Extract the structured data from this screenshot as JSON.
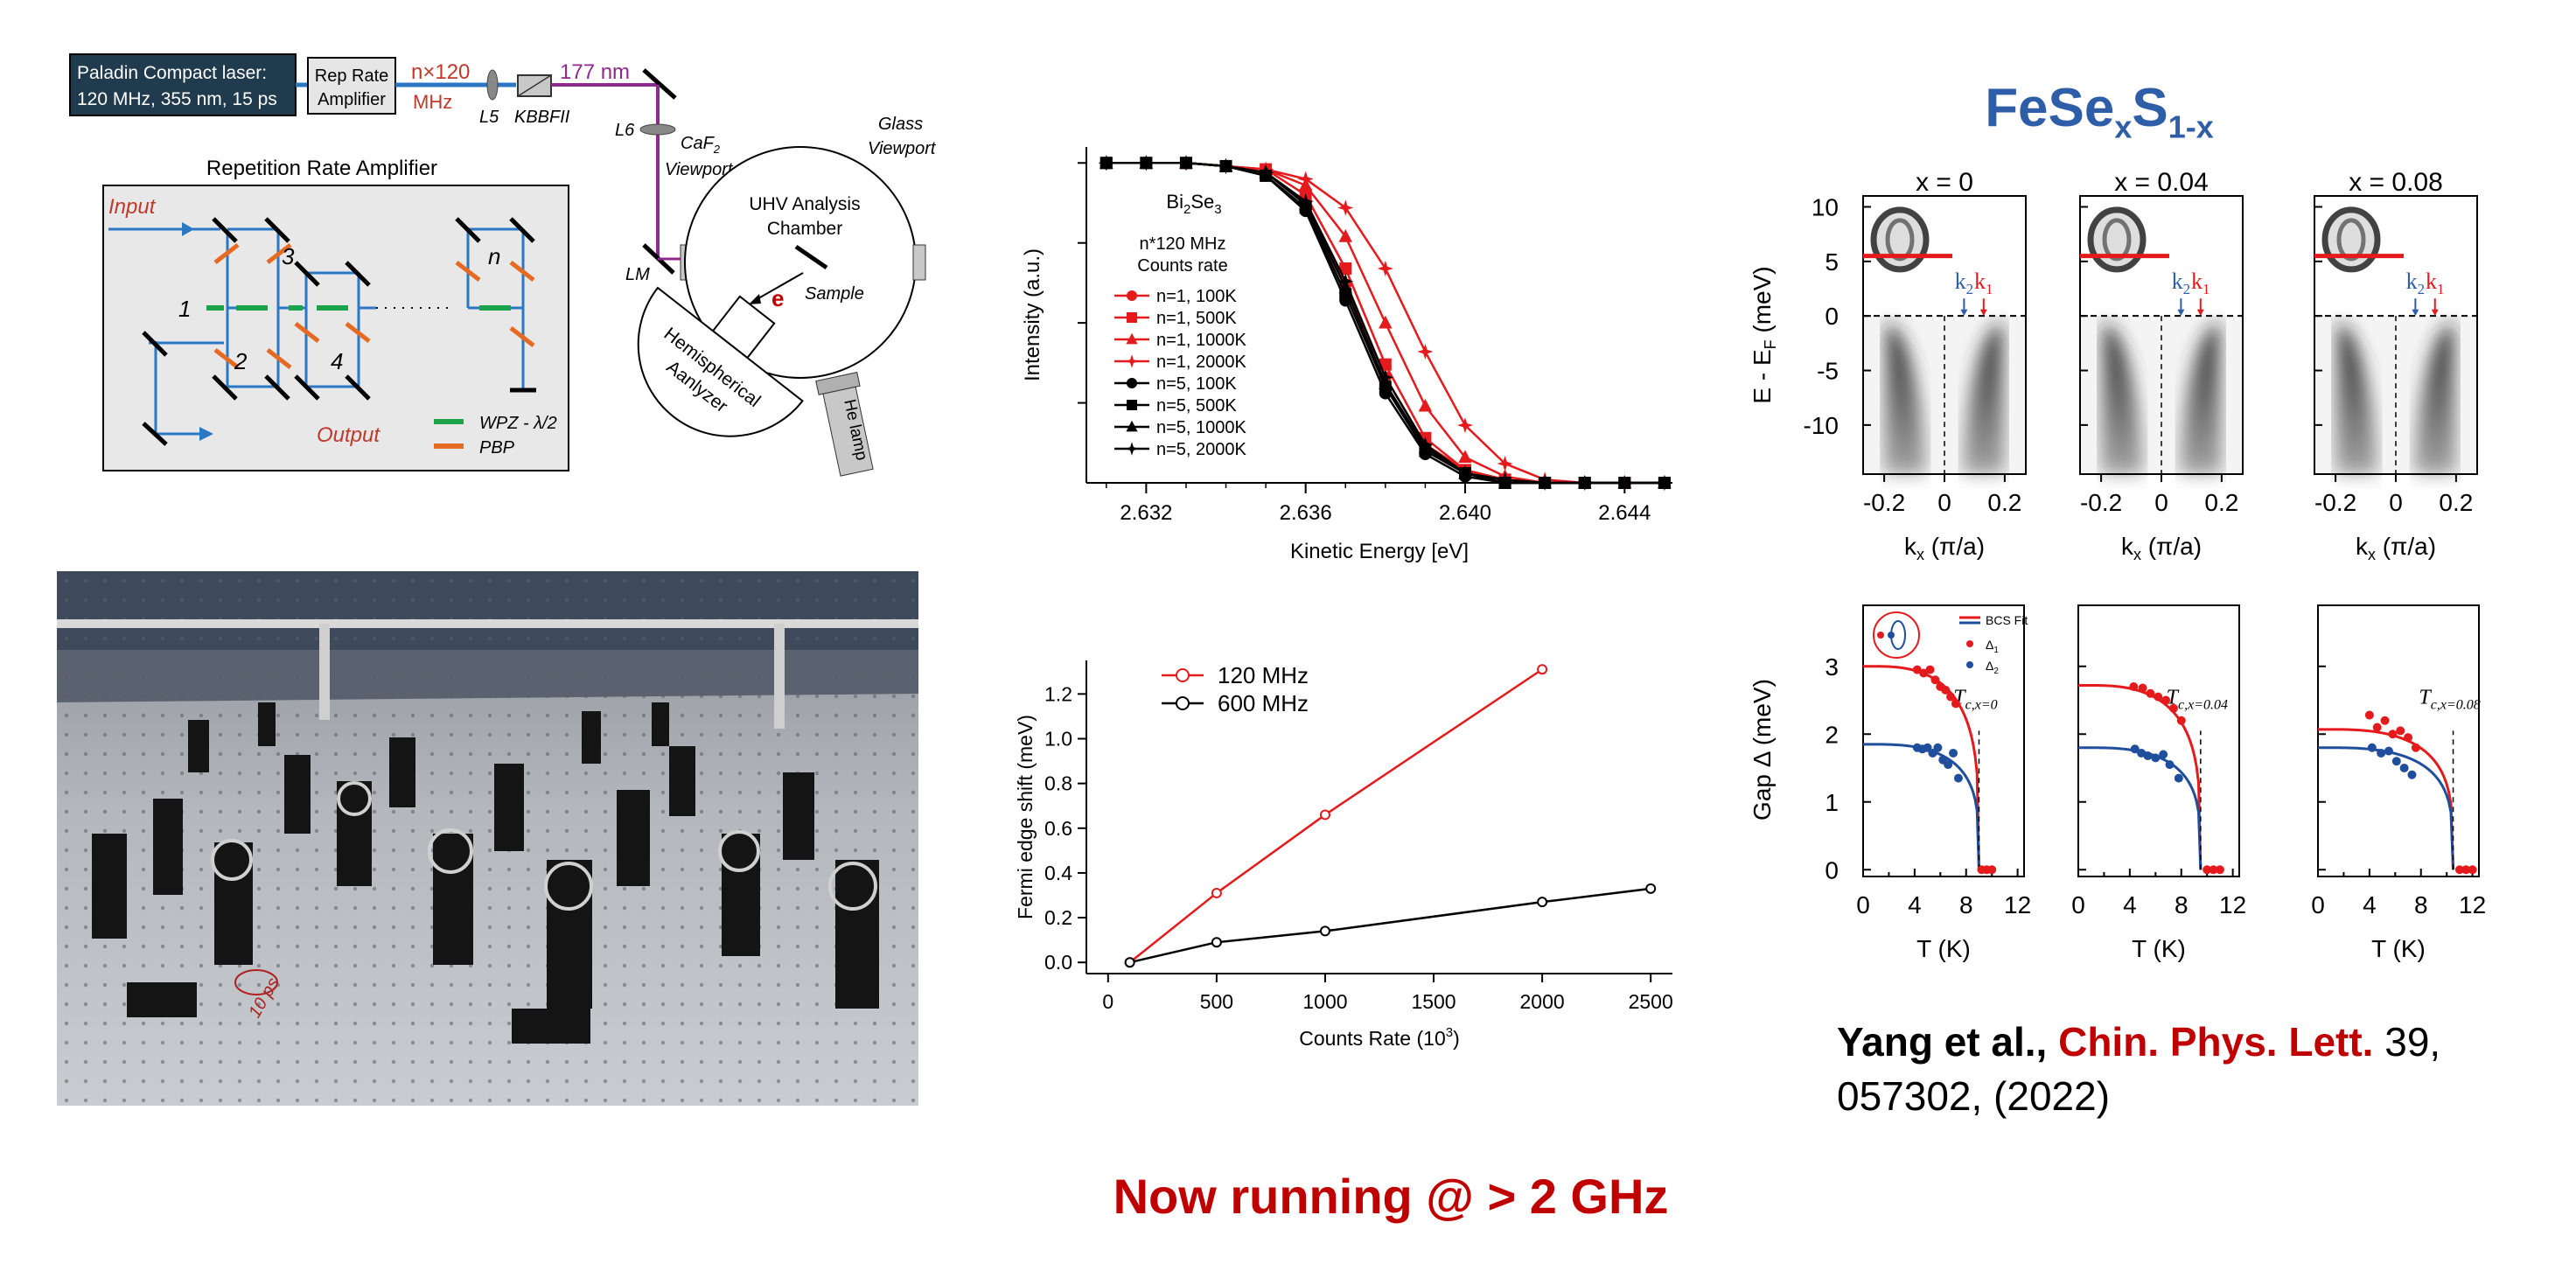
{
  "schematic": {
    "laser_label_line1": "Paladin Compact laser:",
    "laser_label_line2": "120 MHz, 355 nm, 15 ps",
    "amp_box_line1": "Rep Rate",
    "amp_box_line2": "Amplifier",
    "mult_label": "n×120",
    "mult_unit": "MHz",
    "l5": "L5",
    "kbbf": "KBBFII",
    "wavelength": "177 nm",
    "l6": "L6",
    "caf_line1": "CaF",
    "caf_sub": "2",
    "caf_line2": "Viewport",
    "glass_line1": "Glass",
    "glass_line2": "Viewport",
    "uhv_line1": "UHV Analysis",
    "uhv_line2": "Chamber",
    "lm": "LM",
    "e_label": "e",
    "sample": "Sample",
    "analyzer_line1": "Hemispherical",
    "analyzer_line2": "Aanlyzer",
    "he_lamp": "He lamp",
    "rra_title": "Repetition Rate Amplifier",
    "input": "Input",
    "output": "Output",
    "n1": "1",
    "n2": "2",
    "n3": "3",
    "n4": "4",
    "nn": "n",
    "legend_wpz": "WPZ - λ/2",
    "legend_pbp": "PBP"
  },
  "photo": {
    "annotation": "10 ps"
  },
  "headline": "Now running @ > 2 GHz",
  "title_main": {
    "base": "FeSe",
    "sub1": "x",
    "mid": "S",
    "sub2": "1-x"
  },
  "citation": {
    "authors": "Yang et al.,",
    "journal": "Chin. Phys. Lett.",
    "volume": "39,",
    "rest": "057302, (2022)"
  },
  "chart_data": [
    {
      "type": "line",
      "title": "Bi2Se3",
      "legend_title_line1": "n*120 MHz",
      "legend_title_line2": "Counts rate",
      "xlabel": "Kinetic Energy [eV]",
      "ylabel": "Intensity (a.u.)",
      "xlim": [
        2.6305,
        2.6452
      ],
      "ylim": [
        0,
        1.05
      ],
      "xticks": [
        "2.632",
        "2.636",
        "2.640",
        "2.644"
      ],
      "xtick_values": [
        2.632,
        2.636,
        2.64,
        2.644
      ],
      "x": [
        2.631,
        2.632,
        2.633,
        2.634,
        2.635,
        2.636,
        2.637,
        2.638,
        2.639,
        2.64,
        2.641,
        2.642,
        2.643,
        2.644,
        2.645
      ],
      "series": [
        {
          "name": "n=1, 100K",
          "color": "#e41a1c",
          "marker": "circle",
          "values": [
            1.0,
            1.0,
            1.0,
            0.99,
            0.97,
            0.88,
            0.62,
            0.33,
            0.12,
            0.04,
            0.01,
            0.0,
            0.0,
            0.0,
            0.0
          ]
        },
        {
          "name": "n=1, 500K",
          "color": "#e41a1c",
          "marker": "square",
          "values": [
            1.0,
            1.0,
            1.0,
            0.99,
            0.98,
            0.9,
            0.67,
            0.37,
            0.14,
            0.04,
            0.01,
            0.0,
            0.0,
            0.0,
            0.0
          ]
        },
        {
          "name": "n=1, 1000K",
          "color": "#e41a1c",
          "marker": "triangle",
          "values": [
            1.0,
            1.0,
            1.0,
            0.99,
            0.98,
            0.93,
            0.77,
            0.5,
            0.24,
            0.08,
            0.02,
            0.0,
            0.0,
            0.0,
            0.0
          ]
        },
        {
          "name": "n=1, 2000K",
          "color": "#e41a1c",
          "marker": "star",
          "values": [
            1.0,
            1.0,
            1.0,
            0.99,
            0.98,
            0.95,
            0.86,
            0.67,
            0.41,
            0.18,
            0.06,
            0.01,
            0.0,
            0.0,
            0.0
          ]
        },
        {
          "name": "n=5, 100K",
          "color": "#000000",
          "marker": "circle",
          "values": [
            1.0,
            1.0,
            1.0,
            0.99,
            0.96,
            0.85,
            0.57,
            0.28,
            0.09,
            0.02,
            0.0,
            0.0,
            0.0,
            0.0,
            0.0
          ]
        },
        {
          "name": "n=5, 500K",
          "color": "#000000",
          "marker": "square",
          "values": [
            1.0,
            1.0,
            1.0,
            0.99,
            0.96,
            0.86,
            0.59,
            0.3,
            0.1,
            0.03,
            0.0,
            0.0,
            0.0,
            0.0,
            0.0
          ]
        },
        {
          "name": "n=5, 1000K",
          "color": "#000000",
          "marker": "triangle",
          "values": [
            1.0,
            1.0,
            1.0,
            0.99,
            0.97,
            0.87,
            0.61,
            0.31,
            0.11,
            0.03,
            0.0,
            0.0,
            0.0,
            0.0,
            0.0
          ]
        },
        {
          "name": "n=5, 2000K",
          "color": "#000000",
          "marker": "star",
          "values": [
            1.0,
            1.0,
            1.0,
            0.99,
            0.97,
            0.88,
            0.63,
            0.33,
            0.12,
            0.03,
            0.01,
            0.0,
            0.0,
            0.0,
            0.0
          ]
        }
      ],
      "legend_position": "left"
    },
    {
      "type": "line",
      "xlabel": "Counts Rate (10",
      "xlabel_sup": "3",
      "xlabel_end": ")",
      "ylabel": "Fermi edge shift (meV)",
      "xlim": [
        -100,
        2600
      ],
      "ylim": [
        -0.05,
        1.35
      ],
      "xticks": [
        "0",
        "500",
        "1000",
        "1500",
        "2000",
        "2500"
      ],
      "xtick_values": [
        0,
        500,
        1000,
        1500,
        2000,
        2500
      ],
      "yticks": [
        "0.0",
        "0.2",
        "0.4",
        "0.6",
        "0.8",
        "1.0",
        "1.2"
      ],
      "ytick_values": [
        0,
        0.2,
        0.4,
        0.6,
        0.8,
        1.0,
        1.2
      ],
      "series": [
        {
          "name": "120 MHz",
          "color": "#e41a1c",
          "x": [
            100,
            500,
            1000,
            2000
          ],
          "values": [
            0.0,
            0.31,
            0.66,
            1.31
          ]
        },
        {
          "name": "600 MHz",
          "color": "#000000",
          "x": [
            100,
            500,
            1000,
            2000,
            2500
          ],
          "values": [
            0.0,
            0.09,
            0.14,
            0.27,
            0.33
          ]
        }
      ],
      "legend_position": "top-left"
    },
    {
      "type": "heatmap",
      "panels": [
        {
          "title": "x = 0"
        },
        {
          "title": "x = 0.04"
        },
        {
          "title": "x = 0.08"
        }
      ],
      "ylabel": "E - E",
      "ylabel_sub": "F",
      "ylabel_unit": " (meV)",
      "xlabel_base": "k",
      "xlabel_sub": "x",
      "xlabel_unit": " (π/a)",
      "xlim": [
        -0.27,
        0.27
      ],
      "ylim": [
        -14.5,
        11
      ],
      "xticks": [
        "-0.2",
        "0",
        "0.2"
      ],
      "xtick_values": [
        -0.2,
        0,
        0.2
      ],
      "yticks": [
        "10",
        "5",
        "0",
        "-5",
        "-10"
      ],
      "ytick_values": [
        10,
        5,
        0,
        -5,
        -10
      ],
      "k2_label": "k",
      "k2_sub": "2",
      "k1_label": "k",
      "k1_sub": "1"
    },
    {
      "type": "scatter",
      "ylabel": "Gap Δ (meV)",
      "xlabel": "T (K)",
      "xlim": [
        0,
        12.5
      ],
      "ylim": [
        -0.1,
        3.9
      ],
      "xticks": [
        "0",
        "4",
        "8",
        "12"
      ],
      "xtick_values": [
        0,
        4,
        8,
        12
      ],
      "yticks": [
        "0",
        "1",
        "2",
        "3"
      ],
      "ytick_values": [
        0,
        1,
        2,
        3
      ],
      "legend": {
        "fit": "BCS Fit",
        "d1": "Δ",
        "d1_sub": "1",
        "d2": "Δ",
        "d2_sub": "2"
      },
      "panels": [
        {
          "tc_label": "T",
          "tc_sub": "c,x=0",
          "tc": 9.0,
          "d1_max": 3.0,
          "d2_max": 1.85,
          "d1_points": [
            [
              4.2,
              2.95
            ],
            [
              4.7,
              2.9
            ],
            [
              5.2,
              2.95
            ],
            [
              5.6,
              2.8
            ],
            [
              6.0,
              2.7
            ],
            [
              6.4,
              2.65
            ],
            [
              6.8,
              2.55
            ],
            [
              7.2,
              2.45
            ]
          ],
          "d2_points": [
            [
              4.2,
              1.8
            ],
            [
              4.6,
              1.78
            ],
            [
              5.0,
              1.8
            ],
            [
              5.4,
              1.72
            ],
            [
              5.8,
              1.8
            ],
            [
              6.2,
              1.62
            ],
            [
              6.6,
              1.55
            ],
            [
              7.0,
              1.72
            ],
            [
              7.4,
              1.35
            ]
          ],
          "zero_points": [
            [
              9.2,
              0
            ],
            [
              9.6,
              0
            ],
            [
              10.0,
              0
            ]
          ]
        },
        {
          "tc_label": "T",
          "tc_sub": "c,x=0.04",
          "tc": 9.5,
          "d1_max": 2.72,
          "d2_max": 1.8,
          "d1_points": [
            [
              4.3,
              2.7
            ],
            [
              5.0,
              2.68
            ],
            [
              5.6,
              2.6
            ],
            [
              6.2,
              2.55
            ],
            [
              6.8,
              2.5
            ],
            [
              7.4,
              2.38
            ],
            [
              8.0,
              2.2
            ]
          ],
          "d2_points": [
            [
              4.4,
              1.78
            ],
            [
              4.9,
              1.72
            ],
            [
              5.4,
              1.68
            ],
            [
              6.0,
              1.65
            ],
            [
              6.6,
              1.7
            ],
            [
              7.1,
              1.55
            ],
            [
              7.8,
              1.35
            ]
          ],
          "zero_points": [
            [
              10.0,
              0
            ],
            [
              10.5,
              0
            ],
            [
              11.0,
              0
            ]
          ]
        },
        {
          "tc_label": "T",
          "tc_sub": "c,x=0.08",
          "tc": 10.5,
          "d1_max": 2.07,
          "d2_max": 1.8,
          "d1_points": [
            [
              4.0,
              2.28
            ],
            [
              4.6,
              2.1
            ],
            [
              5.2,
              2.2
            ],
            [
              5.8,
              2.0
            ],
            [
              6.4,
              2.05
            ],
            [
              7.0,
              1.95
            ],
            [
              7.6,
              1.8
            ]
          ],
          "d2_points": [
            [
              4.2,
              1.8
            ],
            [
              4.9,
              1.72
            ],
            [
              5.5,
              1.75
            ],
            [
              6.1,
              1.6
            ],
            [
              6.7,
              1.5
            ],
            [
              7.3,
              1.4
            ]
          ],
          "zero_points": [
            [
              11.0,
              0
            ],
            [
              11.5,
              0
            ],
            [
              12.0,
              0
            ]
          ]
        }
      ]
    }
  ]
}
